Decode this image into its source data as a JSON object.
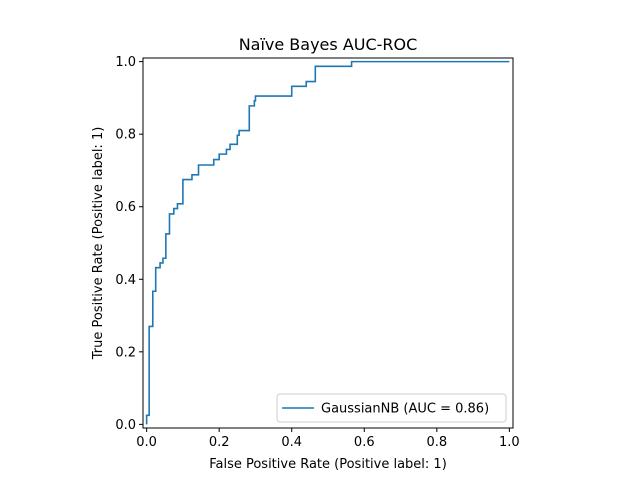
{
  "chart_data": {
    "type": "line",
    "title": "Naïve Bayes AUC-ROC",
    "xlabel": "False Positive Rate (Positive label: 1)",
    "ylabel": "True Positive Rate (Positive label: 1)",
    "xlim": [
      -0.01,
      1.01
    ],
    "ylim": [
      -0.01,
      1.01
    ],
    "xticks": [
      0.0,
      0.2,
      0.4,
      0.6,
      0.8,
      1.0
    ],
    "yticks": [
      0.0,
      0.2,
      0.4,
      0.6,
      0.8,
      1.0
    ],
    "xtick_labels": [
      "0.0",
      "0.2",
      "0.4",
      "0.6",
      "0.8",
      "1.0"
    ],
    "ytick_labels": [
      "0.0",
      "0.2",
      "0.4",
      "0.6",
      "0.8",
      "1.0"
    ],
    "grid": false,
    "legend_position": "lower-right",
    "series": [
      {
        "name": "GaussianNB (AUC = 0.86)",
        "color": "#1f77b4",
        "x": [
          0.0,
          0.0,
          0.007,
          0.007,
          0.017,
          0.017,
          0.025,
          0.025,
          0.037,
          0.037,
          0.045,
          0.045,
          0.053,
          0.053,
          0.063,
          0.063,
          0.075,
          0.075,
          0.085,
          0.085,
          0.1,
          0.1,
          0.125,
          0.125,
          0.143,
          0.143,
          0.185,
          0.185,
          0.2,
          0.2,
          0.22,
          0.22,
          0.23,
          0.23,
          0.25,
          0.25,
          0.255,
          0.255,
          0.283,
          0.283,
          0.297,
          0.297,
          0.3,
          0.3,
          0.4,
          0.4,
          0.44,
          0.44,
          0.465,
          0.465,
          0.565,
          0.565,
          0.873,
          0.873,
          1.0
        ],
        "y": [
          0.0,
          0.025,
          0.025,
          0.27,
          0.27,
          0.367,
          0.367,
          0.432,
          0.432,
          0.445,
          0.445,
          0.458,
          0.458,
          0.525,
          0.525,
          0.58,
          0.58,
          0.595,
          0.595,
          0.608,
          0.608,
          0.675,
          0.675,
          0.688,
          0.688,
          0.715,
          0.715,
          0.73,
          0.73,
          0.745,
          0.745,
          0.758,
          0.758,
          0.772,
          0.772,
          0.797,
          0.797,
          0.81,
          0.81,
          0.878,
          0.878,
          0.892,
          0.892,
          0.905,
          0.905,
          0.932,
          0.932,
          0.945,
          0.945,
          0.987,
          0.987,
          1.0,
          1.0,
          1.0,
          1.0
        ]
      }
    ]
  }
}
